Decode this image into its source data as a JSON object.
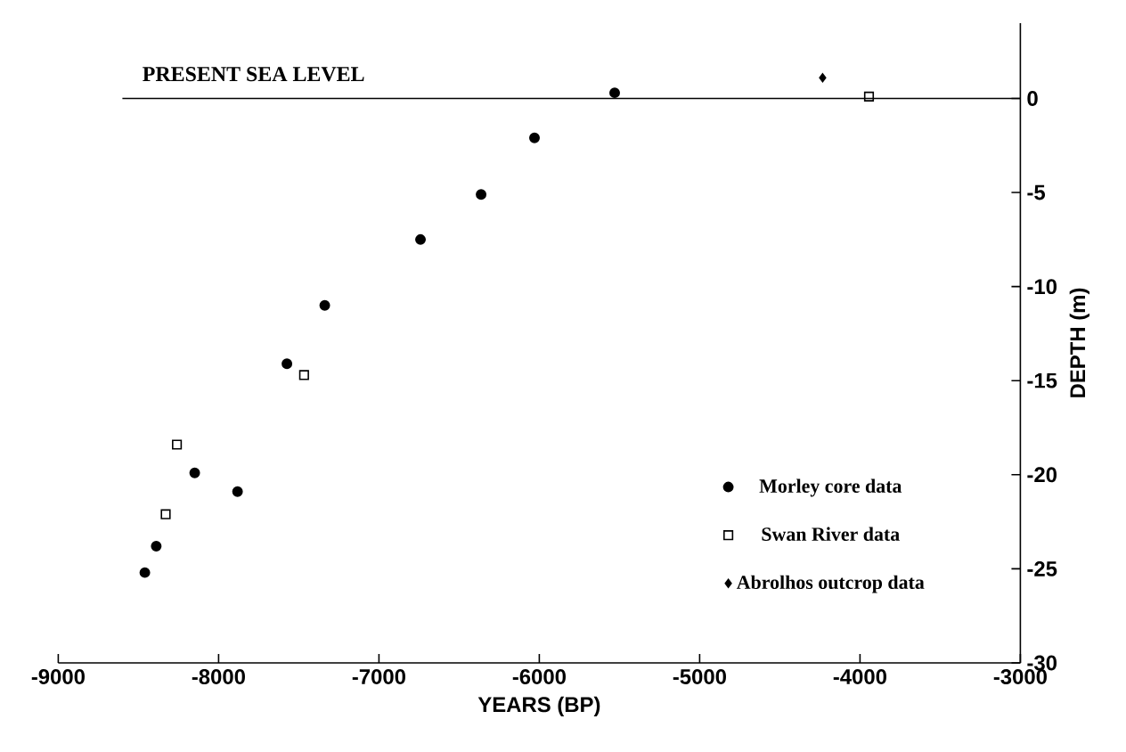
{
  "chart_data": {
    "type": "scatter",
    "xlabel": "YEARS (BP)",
    "ylabel": "DEPTH (m)",
    "xlim": [
      -9000,
      -3000
    ],
    "xticks": [
      -9000,
      -8000,
      -7000,
      -6000,
      -5000,
      -4000,
      -3000
    ],
    "ylim": [
      -30,
      4
    ],
    "yticks": [
      0,
      -5,
      -10,
      -15,
      -20,
      -25,
      -30
    ],
    "grid": false,
    "legend": "bottom right",
    "ref_lines": [
      {
        "axis": "y",
        "value": 0,
        "label": "PRESENT SEA LEVEL",
        "color": "#000000"
      }
    ],
    "series": [
      {
        "name": "Morley core data",
        "color": "#000000",
        "marker": "circle",
        "x": [
          -6030,
          -6363,
          -6741,
          -7338,
          -7574,
          -8149,
          -7882,
          -8389,
          -8460,
          -5530
        ],
        "values": [
          -2.1,
          -5.1,
          -7.5,
          -11.0,
          -14.1,
          -19.9,
          -20.9,
          -23.8,
          -25.2,
          0.3
        ]
      },
      {
        "name": "Swan River data",
        "color": "#000000",
        "marker": "square",
        "x": [
          -7467,
          -8260,
          -8330,
          -3944
        ],
        "values": [
          -14.7,
          -18.4,
          -22.1,
          0.1
        ]
      },
      {
        "name": "Abrolhos outcrop data",
        "color": "#000000",
        "marker": "diamond",
        "x": [
          -4233
        ],
        "values": [
          1.1
        ]
      }
    ]
  }
}
